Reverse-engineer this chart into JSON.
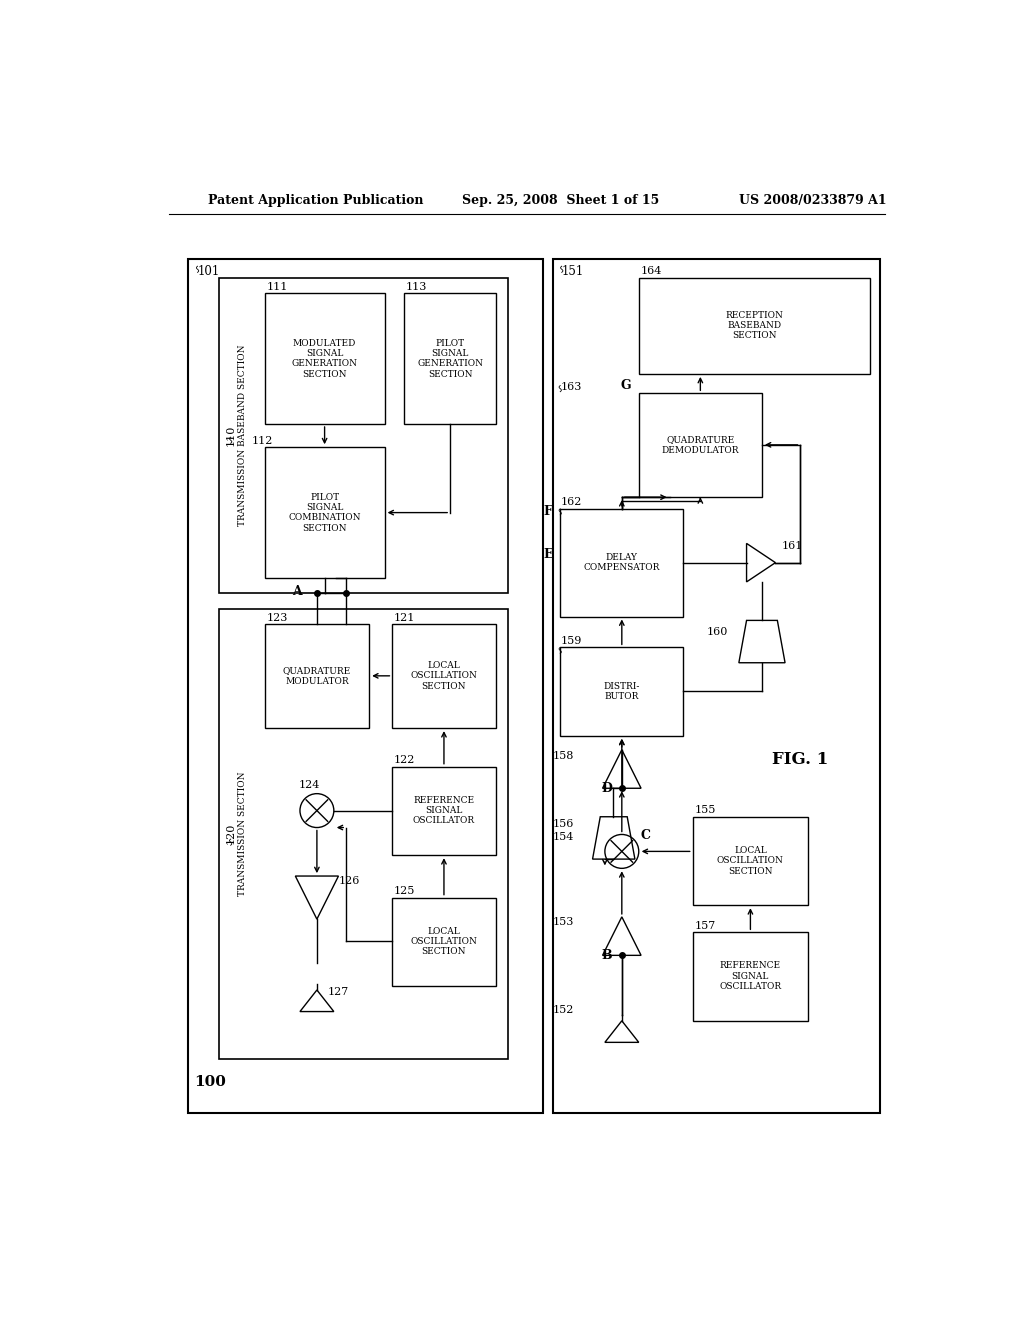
{
  "bg_color": "#ffffff",
  "lc": "#000000",
  "header_left": "Patent Application Publication",
  "header_mid": "Sep. 25, 2008  Sheet 1 of 15",
  "header_right": "US 2008/0233879 A1",
  "fig_label": "FIG. 1"
}
